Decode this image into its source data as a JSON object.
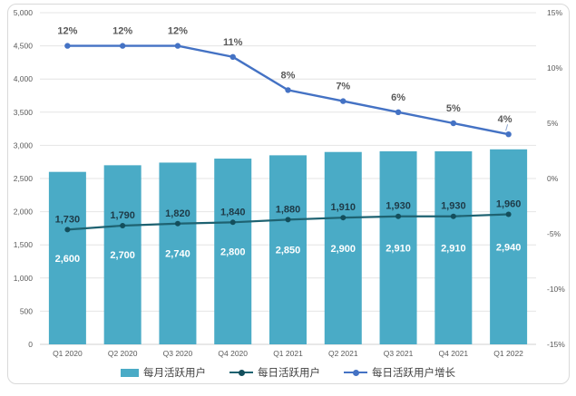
{
  "chart_data": {
    "type": "combo",
    "categories": [
      "Q1 2020",
      "Q2 2020",
      "Q3 2020",
      "Q4 2020",
      "Q1 2021",
      "Q2 2021",
      "Q3 2021",
      "Q4 2021",
      "Q1 2022"
    ],
    "series": [
      {
        "key": "mau",
        "name": "每月活跃用户",
        "type": "bar",
        "axis": "left",
        "color": "#4AABC6",
        "label_color": "#ffffff",
        "values": [
          2600,
          2700,
          2740,
          2800,
          2850,
          2900,
          2910,
          2910,
          2940
        ],
        "labels": [
          "2,600",
          "2,700",
          "2,740",
          "2,800",
          "2,850",
          "2,900",
          "2,910",
          "2,910",
          "2,940"
        ]
      },
      {
        "key": "dau",
        "name": "每日活跃用户",
        "type": "line",
        "axis": "left",
        "color": "#1E6271",
        "marker_color": "#134E5C",
        "label_color": "#1e3a47",
        "values": [
          1730,
          1790,
          1820,
          1840,
          1880,
          1910,
          1930,
          1930,
          1960
        ],
        "labels": [
          "1,730",
          "1,790",
          "1,820",
          "1,840",
          "1,880",
          "1,910",
          "1,930",
          "1,930",
          "1,960"
        ]
      },
      {
        "key": "dau-growth",
        "name": "每日活跃用户增长",
        "type": "line",
        "axis": "right",
        "color": "#4472C4",
        "marker_color": "#4472C4",
        "label_color": "#595959",
        "values": [
          12,
          12,
          12,
          11,
          8,
          7,
          6,
          5,
          4
        ],
        "labels": [
          "12%",
          "12%",
          "12%",
          "11%",
          "8%",
          "7%",
          "6%",
          "5%",
          "4%"
        ],
        "last_label_leader_line": true
      }
    ],
    "left_axis": {
      "min": 0,
      "max": 5000,
      "step": 500,
      "tick_labels": [
        "0",
        "500",
        "1,000",
        "1,500",
        "2,000",
        "2,500",
        "3,000",
        "3,500",
        "4,000",
        "4,500",
        "5,000"
      ]
    },
    "right_axis": {
      "min": -15,
      "max": 15,
      "step": 5,
      "tick_labels": [
        "-15%",
        "-10%",
        "-5%",
        "0%",
        "5%",
        "10%",
        "15%"
      ]
    },
    "grid": true,
    "legend_position": "bottom",
    "background": "#ffffff",
    "frame_border_color": "#d9d9d9",
    "gridline_color": "#e4e4e4"
  }
}
